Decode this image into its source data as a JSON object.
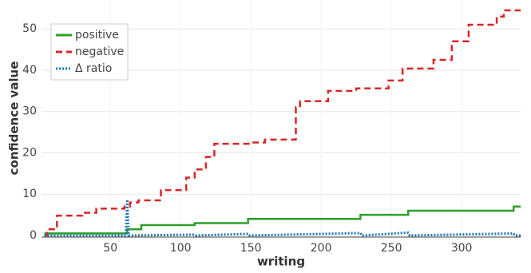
{
  "chart_data": {
    "type": "line",
    "x_label": "writing",
    "y_label": "confidence value",
    "xlim": [
      1,
      342
    ],
    "ylim": [
      0,
      57
    ],
    "xticks": [
      50,
      100,
      150,
      200,
      250,
      300
    ],
    "yticks": [
      0,
      10,
      20,
      30,
      40,
      50
    ],
    "grid": true,
    "legend": "top-left",
    "series": [
      {
        "name": "positive",
        "color": "#2ca02c",
        "dash": "solid",
        "x": [
          3,
          62,
          62,
          72,
          72,
          110,
          110,
          148,
          148,
          228,
          228,
          262,
          262,
          337,
          337,
          342
        ],
        "values": [
          0.5,
          0.5,
          1.5,
          1.5,
          2.5,
          2.5,
          3,
          3,
          4,
          4,
          5,
          5,
          6,
          6,
          7,
          7
        ]
      },
      {
        "name": "negative",
        "color": "#d62728",
        "dash": "dash",
        "x": [
          3,
          5,
          5,
          12,
          12,
          30,
          30,
          40,
          40,
          60,
          60,
          64,
          64,
          70,
          70,
          86,
          86,
          104,
          104,
          110,
          110,
          118,
          118,
          124,
          124,
          150,
          150,
          160,
          160,
          182,
          182,
          185,
          185,
          205,
          205,
          225,
          225,
          248,
          248,
          258,
          258,
          280,
          280,
          293,
          293,
          305,
          305,
          325,
          325,
          330,
          330,
          342
        ],
        "values": [
          0,
          0,
          1.5,
          1.5,
          4.8,
          4.8,
          5.5,
          5.5,
          6.5,
          6.5,
          7,
          7,
          8,
          8,
          8.5,
          8.5,
          11,
          11,
          14,
          14,
          16,
          16,
          19,
          19,
          22.2,
          22.2,
          22.5,
          22.5,
          23.2,
          23.2,
          31,
          31,
          32.5,
          32.5,
          35,
          35,
          35.6,
          35.6,
          37.5,
          37.5,
          40.4,
          40.4,
          42.5,
          42.5,
          47,
          47,
          51,
          51,
          53,
          53,
          54.5,
          54.5
        ]
      },
      {
        "name": "Δ ratio",
        "color": "#1f77b4",
        "dash": "dot",
        "x": [
          3,
          61,
          62,
          63,
          110,
          111,
          148,
          149,
          228,
          229,
          262,
          263,
          337,
          338,
          342
        ],
        "values": [
          0,
          0,
          8.7,
          0,
          0.2,
          0,
          0.4,
          0,
          0.6,
          0,
          0.7,
          0,
          0.5,
          0,
          0
        ]
      }
    ]
  }
}
